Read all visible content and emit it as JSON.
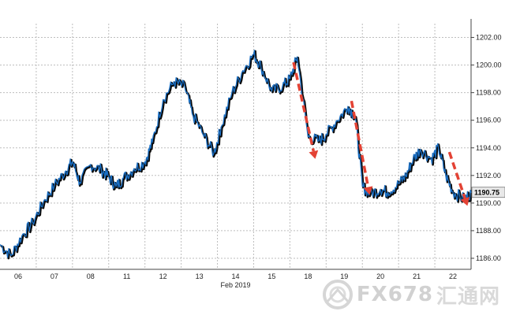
{
  "chart_data": {
    "type": "line",
    "title": "",
    "xlabel": "Feb 2019",
    "ylabel": "",
    "x_tick_labels": [
      "06",
      "07",
      "08",
      "11",
      "12",
      "13",
      "14",
      "15",
      "18",
      "19",
      "20",
      "21",
      "22"
    ],
    "ylim": [
      1185.2,
      1203.0
    ],
    "y_ticks": [
      1186.0,
      1188.0,
      1190.0,
      1192.0,
      1194.0,
      1196.0,
      1198.0,
      1200.0,
      1202.0
    ],
    "y_tick_labels": [
      "1186.00",
      "1188.00",
      "1190.00",
      "1192.00",
      "1194.00",
      "1196.00",
      "1198.00",
      "1200.00",
      "1202.00"
    ],
    "grid": true,
    "last_value": 1190.75,
    "last_value_label": "1190.75",
    "series": [
      {
        "points": [
          [
            0,
            1187.0
          ],
          [
            0.3,
            1186.2
          ],
          [
            0.6,
            1187.6
          ],
          [
            0.9,
            1188.6
          ],
          [
            1.2,
            1190.1
          ],
          [
            1.5,
            1191.3
          ],
          [
            1.8,
            1192.3
          ],
          [
            2.0,
            1193.0
          ],
          [
            2.2,
            1191.5
          ],
          [
            2.5,
            1192.8
          ],
          [
            2.8,
            1192.4
          ],
          [
            3.0,
            1191.9
          ],
          [
            3.2,
            1191.2
          ],
          [
            3.4,
            1191.8
          ],
          [
            3.7,
            1192.5
          ],
          [
            4.0,
            1193.0
          ],
          [
            4.2,
            1194.4
          ],
          [
            4.5,
            1197.5
          ],
          [
            4.8,
            1198.8
          ],
          [
            5.1,
            1198.4
          ],
          [
            5.3,
            1196.5
          ],
          [
            5.6,
            1195.0
          ],
          [
            5.9,
            1193.6
          ],
          [
            6.1,
            1195.5
          ],
          [
            6.4,
            1198.0
          ],
          [
            6.7,
            1199.6
          ],
          [
            7.0,
            1200.8
          ],
          [
            7.2,
            1199.9
          ],
          [
            7.5,
            1198.1
          ],
          [
            7.8,
            1198.5
          ],
          [
            8.0,
            1199.0
          ],
          [
            8.2,
            1200.6
          ],
          [
            8.5,
            1194.8
          ],
          [
            8.8,
            1194.5
          ],
          [
            9.0,
            1195.0
          ],
          [
            9.3,
            1196.0
          ],
          [
            9.6,
            1197.0
          ],
          [
            9.8,
            1196.3
          ],
          [
            10.0,
            1191.2
          ],
          [
            10.2,
            1190.7
          ],
          [
            10.5,
            1191.0
          ],
          [
            10.7,
            1190.8
          ],
          [
            11.0,
            1191.4
          ],
          [
            11.2,
            1192.0
          ],
          [
            11.4,
            1193.2
          ],
          [
            11.6,
            1193.9
          ],
          [
            11.9,
            1193.2
          ],
          [
            12.1,
            1194.0
          ],
          [
            12.3,
            1192.0
          ],
          [
            12.5,
            1190.8
          ],
          [
            12.8,
            1190.3
          ],
          [
            13.0,
            1190.75
          ]
        ]
      }
    ],
    "annotations": [
      {
        "type": "dashed-arrow",
        "from": [
          8.1,
          1200.2
        ],
        "to": [
          8.7,
          1193.2
        ]
      },
      {
        "type": "dashed-arrow",
        "from": [
          9.7,
          1197.4
        ],
        "to": [
          10.2,
          1190.6
        ]
      },
      {
        "type": "dashed-arrow",
        "from": [
          12.4,
          1193.7
        ],
        "to": [
          12.9,
          1189.8
        ]
      }
    ],
    "colors": {
      "line": "#1a6fc4",
      "line_shadow": "#0a0a0a",
      "annotation": "#e34234",
      "grid": "#bdbdbd",
      "last_label_bg": "#e8e8e8"
    }
  },
  "watermark": {
    "brand": "FX678",
    "cn": "汇通网"
  }
}
